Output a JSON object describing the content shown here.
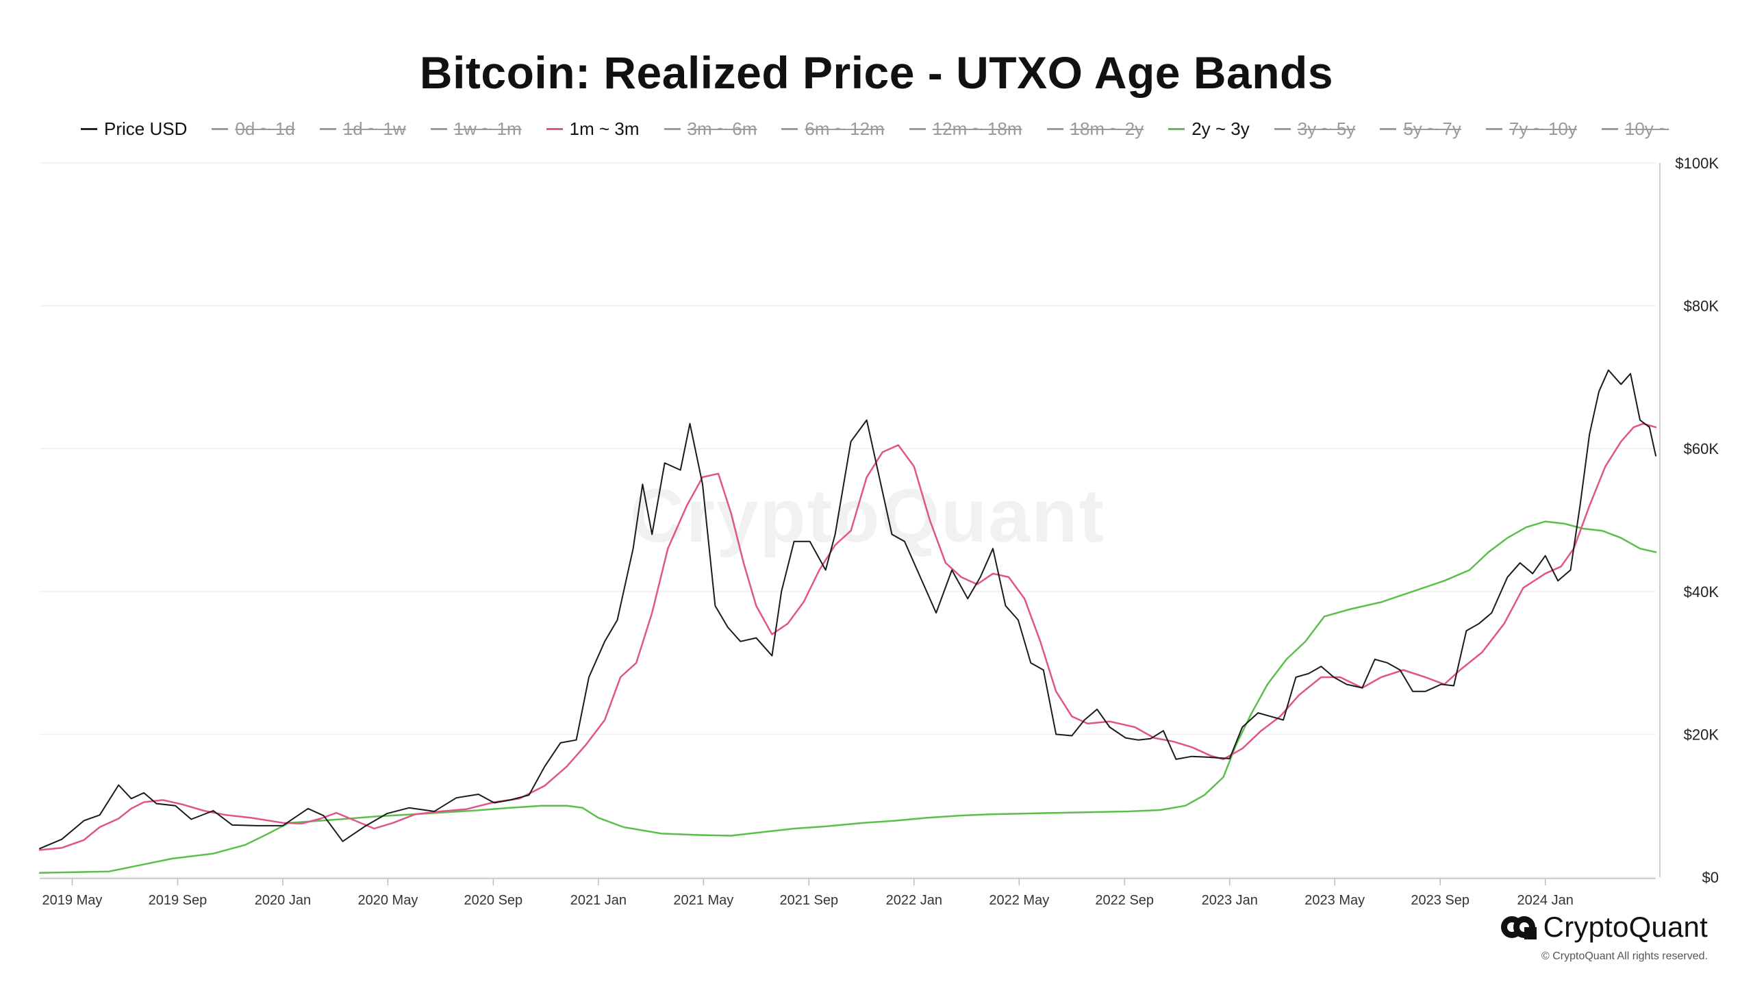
{
  "title": "Bitcoin: Realized Price - UTXO Age Bands",
  "legend": [
    {
      "label": "Price USD",
      "color": "#222222",
      "active": true
    },
    {
      "label": "0d ~ 1d",
      "color": "#999999",
      "active": false
    },
    {
      "label": "1d ~ 1w",
      "color": "#999999",
      "active": false
    },
    {
      "label": "1w ~ 1m",
      "color": "#999999",
      "active": false
    },
    {
      "label": "1m ~ 3m",
      "color": "#e0548a",
      "active": true
    },
    {
      "label": "3m ~ 6m",
      "color": "#999999",
      "active": false
    },
    {
      "label": "6m ~ 12m",
      "color": "#999999",
      "active": false
    },
    {
      "label": "12m ~ 18m",
      "color": "#999999",
      "active": false
    },
    {
      "label": "18m ~ 2y",
      "color": "#999999",
      "active": false
    },
    {
      "label": "2y ~ 3y",
      "color": "#5cbf4c",
      "active": true
    },
    {
      "label": "3y ~ 5y",
      "color": "#999999",
      "active": false
    },
    {
      "label": "5y ~ 7y",
      "color": "#999999",
      "active": false
    },
    {
      "label": "7y ~ 10y",
      "color": "#999999",
      "active": false
    },
    {
      "label": "10y ~",
      "color": "#999999",
      "active": false
    }
  ],
  "watermark": "CryptoQuant",
  "brand": {
    "name": "CryptoQuant",
    "copyright": "© CryptoQuant All rights reserved."
  },
  "chart_data": {
    "type": "line",
    "y_ticks": [
      "$0",
      "$20K",
      "$40K",
      "$60K",
      "$80K",
      "$100K"
    ],
    "ylim": [
      0,
      100000
    ],
    "y_axis_side": "right",
    "x_ticks": [
      {
        "label": "2019 May",
        "t": 2019.333
      },
      {
        "label": "2019 Sep",
        "t": 2019.667
      },
      {
        "label": "2020 Jan",
        "t": 2020.0
      },
      {
        "label": "2020 May",
        "t": 2020.333
      },
      {
        "label": "2020 Sep",
        "t": 2020.667
      },
      {
        "label": "2021 Jan",
        "t": 2021.0
      },
      {
        "label": "2021 May",
        "t": 2021.333
      },
      {
        "label": "2021 Sep",
        "t": 2021.667
      },
      {
        "label": "2022 Jan",
        "t": 2022.0
      },
      {
        "label": "2022 May",
        "t": 2022.333
      },
      {
        "label": "2022 Sep",
        "t": 2022.667
      },
      {
        "label": "2023 Jan",
        "t": 2023.0
      },
      {
        "label": "2023 May",
        "t": 2023.333
      },
      {
        "label": "2023 Sep",
        "t": 2023.667
      },
      {
        "label": "2024 Jan",
        "t": 2024.0
      }
    ],
    "xlim": [
      2019.23,
      2024.35
    ],
    "grid": true,
    "series": [
      {
        "name": "Price USD",
        "color": "#1a1a1a",
        "width": 2,
        "points": [
          [
            2019.23,
            4000
          ],
          [
            2019.3,
            5300
          ],
          [
            2019.37,
            7900
          ],
          [
            2019.42,
            8700
          ],
          [
            2019.48,
            12900
          ],
          [
            2019.52,
            11000
          ],
          [
            2019.56,
            11800
          ],
          [
            2019.6,
            10300
          ],
          [
            2019.66,
            10000
          ],
          [
            2019.71,
            8100
          ],
          [
            2019.78,
            9300
          ],
          [
            2019.84,
            7300
          ],
          [
            2019.92,
            7200
          ],
          [
            2020.0,
            7200
          ],
          [
            2020.08,
            9600
          ],
          [
            2020.13,
            8600
          ],
          [
            2020.19,
            5000
          ],
          [
            2020.26,
            7100
          ],
          [
            2020.33,
            8900
          ],
          [
            2020.4,
            9700
          ],
          [
            2020.48,
            9200
          ],
          [
            2020.55,
            11100
          ],
          [
            2020.62,
            11600
          ],
          [
            2020.67,
            10400
          ],
          [
            2020.72,
            10800
          ],
          [
            2020.78,
            11500
          ],
          [
            2020.83,
            15500
          ],
          [
            2020.88,
            18800
          ],
          [
            2020.93,
            19200
          ],
          [
            2020.97,
            28000
          ],
          [
            2021.02,
            33000
          ],
          [
            2021.06,
            36000
          ],
          [
            2021.11,
            46000
          ],
          [
            2021.14,
            55000
          ],
          [
            2021.17,
            48000
          ],
          [
            2021.21,
            58000
          ],
          [
            2021.26,
            57000
          ],
          [
            2021.29,
            63500
          ],
          [
            2021.33,
            55000
          ],
          [
            2021.37,
            38000
          ],
          [
            2021.41,
            35000
          ],
          [
            2021.45,
            33000
          ],
          [
            2021.5,
            33500
          ],
          [
            2021.55,
            31000
          ],
          [
            2021.58,
            40000
          ],
          [
            2021.62,
            47000
          ],
          [
            2021.67,
            47000
          ],
          [
            2021.72,
            43000
          ],
          [
            2021.75,
            48000
          ],
          [
            2021.8,
            61000
          ],
          [
            2021.85,
            64000
          ],
          [
            2021.88,
            58000
          ],
          [
            2021.93,
            48000
          ],
          [
            2021.97,
            47000
          ],
          [
            2022.02,
            42000
          ],
          [
            2022.07,
            37000
          ],
          [
            2022.12,
            43000
          ],
          [
            2022.17,
            39000
          ],
          [
            2022.21,
            42000
          ],
          [
            2022.25,
            46000
          ],
          [
            2022.29,
            38000
          ],
          [
            2022.33,
            36000
          ],
          [
            2022.37,
            30000
          ],
          [
            2022.41,
            29000
          ],
          [
            2022.45,
            20000
          ],
          [
            2022.5,
            19800
          ],
          [
            2022.54,
            22000
          ],
          [
            2022.58,
            23500
          ],
          [
            2022.62,
            21000
          ],
          [
            2022.67,
            19500
          ],
          [
            2022.71,
            19200
          ],
          [
            2022.75,
            19400
          ],
          [
            2022.79,
            20500
          ],
          [
            2022.83,
            16500
          ],
          [
            2022.88,
            16900
          ],
          [
            2022.93,
            16800
          ],
          [
            2023.0,
            16600
          ],
          [
            2023.04,
            21000
          ],
          [
            2023.09,
            23000
          ],
          [
            2023.13,
            22500
          ],
          [
            2023.17,
            22000
          ],
          [
            2023.21,
            28000
          ],
          [
            2023.25,
            28500
          ],
          [
            2023.29,
            29500
          ],
          [
            2023.33,
            28000
          ],
          [
            2023.37,
            27000
          ],
          [
            2023.42,
            26500
          ],
          [
            2023.46,
            30500
          ],
          [
            2023.5,
            30000
          ],
          [
            2023.54,
            29000
          ],
          [
            2023.58,
            26000
          ],
          [
            2023.62,
            26000
          ],
          [
            2023.67,
            27000
          ],
          [
            2023.71,
            26800
          ],
          [
            2023.75,
            34500
          ],
          [
            2023.79,
            35500
          ],
          [
            2023.83,
            37000
          ],
          [
            2023.88,
            42000
          ],
          [
            2023.92,
            44000
          ],
          [
            2023.96,
            42500
          ],
          [
            2024.0,
            45000
          ],
          [
            2024.04,
            41500
          ],
          [
            2024.08,
            43000
          ],
          [
            2024.11,
            52000
          ],
          [
            2024.14,
            62000
          ],
          [
            2024.17,
            68000
          ],
          [
            2024.2,
            71000
          ],
          [
            2024.24,
            69000
          ],
          [
            2024.27,
            70500
          ],
          [
            2024.3,
            64000
          ],
          [
            2024.33,
            63000
          ],
          [
            2024.35,
            59000
          ]
        ]
      },
      {
        "name": "1m ~ 3m",
        "color": "#e0548a",
        "width": 2.5,
        "points": [
          [
            2019.23,
            3800
          ],
          [
            2019.3,
            4100
          ],
          [
            2019.37,
            5200
          ],
          [
            2019.42,
            7000
          ],
          [
            2019.48,
            8200
          ],
          [
            2019.52,
            9600
          ],
          [
            2019.56,
            10500
          ],
          [
            2019.62,
            10800
          ],
          [
            2019.68,
            10200
          ],
          [
            2019.75,
            9300
          ],
          [
            2019.82,
            8700
          ],
          [
            2019.9,
            8300
          ],
          [
            2020.0,
            7600
          ],
          [
            2020.06,
            7500
          ],
          [
            2020.12,
            8200
          ],
          [
            2020.17,
            9000
          ],
          [
            2020.23,
            7900
          ],
          [
            2020.29,
            6800
          ],
          [
            2020.35,
            7600
          ],
          [
            2020.42,
            8800
          ],
          [
            2020.5,
            9200
          ],
          [
            2020.58,
            9500
          ],
          [
            2020.67,
            10500
          ],
          [
            2020.75,
            11000
          ],
          [
            2020.83,
            12800
          ],
          [
            2020.9,
            15500
          ],
          [
            2020.96,
            18500
          ],
          [
            2021.02,
            22000
          ],
          [
            2021.07,
            28000
          ],
          [
            2021.12,
            30000
          ],
          [
            2021.17,
            37000
          ],
          [
            2021.22,
            46000
          ],
          [
            2021.28,
            52000
          ],
          [
            2021.33,
            56000
          ],
          [
            2021.38,
            56500
          ],
          [
            2021.42,
            51000
          ],
          [
            2021.46,
            44000
          ],
          [
            2021.5,
            38000
          ],
          [
            2021.55,
            34000
          ],
          [
            2021.6,
            35500
          ],
          [
            2021.65,
            38500
          ],
          [
            2021.7,
            43000
          ],
          [
            2021.75,
            46500
          ],
          [
            2021.8,
            48500
          ],
          [
            2021.85,
            56000
          ],
          [
            2021.9,
            59500
          ],
          [
            2021.95,
            60500
          ],
          [
            2022.0,
            57500
          ],
          [
            2022.05,
            50000
          ],
          [
            2022.1,
            44000
          ],
          [
            2022.15,
            42000
          ],
          [
            2022.2,
            41000
          ],
          [
            2022.25,
            42500
          ],
          [
            2022.3,
            42000
          ],
          [
            2022.35,
            39000
          ],
          [
            2022.4,
            33000
          ],
          [
            2022.45,
            26000
          ],
          [
            2022.5,
            22500
          ],
          [
            2022.55,
            21500
          ],
          [
            2022.62,
            21800
          ],
          [
            2022.7,
            21000
          ],
          [
            2022.76,
            19500
          ],
          [
            2022.82,
            19000
          ],
          [
            2022.88,
            18200
          ],
          [
            2022.94,
            17000
          ],
          [
            2022.98,
            16500
          ],
          [
            2023.04,
            18000
          ],
          [
            2023.1,
            20500
          ],
          [
            2023.16,
            22500
          ],
          [
            2023.22,
            25500
          ],
          [
            2023.29,
            28000
          ],
          [
            2023.35,
            28000
          ],
          [
            2023.42,
            26500
          ],
          [
            2023.48,
            28000
          ],
          [
            2023.55,
            29000
          ],
          [
            2023.62,
            28000
          ],
          [
            2023.68,
            27000
          ],
          [
            2023.73,
            29000
          ],
          [
            2023.8,
            31500
          ],
          [
            2023.87,
            35500
          ],
          [
            2023.93,
            40500
          ],
          [
            2024.0,
            42500
          ],
          [
            2024.05,
            43500
          ],
          [
            2024.09,
            46000
          ],
          [
            2024.14,
            52000
          ],
          [
            2024.19,
            57500
          ],
          [
            2024.24,
            61000
          ],
          [
            2024.28,
            63000
          ],
          [
            2024.31,
            63500
          ],
          [
            2024.35,
            63000
          ]
        ]
      },
      {
        "name": "2y ~ 3y",
        "color": "#5cbf4c",
        "width": 2.5,
        "points": [
          [
            2019.23,
            600
          ],
          [
            2019.45,
            800
          ],
          [
            2019.55,
            1700
          ],
          [
            2019.65,
            2600
          ],
          [
            2019.78,
            3300
          ],
          [
            2019.88,
            4500
          ],
          [
            2019.95,
            6000
          ],
          [
            2020.02,
            7600
          ],
          [
            2020.15,
            8000
          ],
          [
            2020.3,
            8500
          ],
          [
            2020.45,
            8900
          ],
          [
            2020.6,
            9300
          ],
          [
            2020.72,
            9700
          ],
          [
            2020.82,
            10000
          ],
          [
            2020.9,
            10000
          ],
          [
            2020.95,
            9700
          ],
          [
            2021.0,
            8300
          ],
          [
            2021.08,
            7000
          ],
          [
            2021.2,
            6100
          ],
          [
            2021.32,
            5900
          ],
          [
            2021.42,
            5800
          ],
          [
            2021.52,
            6300
          ],
          [
            2021.62,
            6800
          ],
          [
            2021.72,
            7100
          ],
          [
            2021.84,
            7600
          ],
          [
            2021.94,
            7900
          ],
          [
            2022.04,
            8300
          ],
          [
            2022.14,
            8600
          ],
          [
            2022.24,
            8800
          ],
          [
            2022.34,
            8900
          ],
          [
            2022.46,
            9000
          ],
          [
            2022.56,
            9100
          ],
          [
            2022.68,
            9200
          ],
          [
            2022.78,
            9400
          ],
          [
            2022.86,
            10000
          ],
          [
            2022.92,
            11500
          ],
          [
            2022.98,
            14000
          ],
          [
            2023.02,
            18500
          ],
          [
            2023.07,
            23000
          ],
          [
            2023.12,
            27000
          ],
          [
            2023.18,
            30500
          ],
          [
            2023.24,
            33000
          ],
          [
            2023.3,
            36500
          ],
          [
            2023.38,
            37500
          ],
          [
            2023.48,
            38500
          ],
          [
            2023.58,
            40000
          ],
          [
            2023.68,
            41500
          ],
          [
            2023.76,
            43000
          ],
          [
            2023.82,
            45500
          ],
          [
            2023.88,
            47500
          ],
          [
            2023.94,
            49000
          ],
          [
            2024.0,
            49800
          ],
          [
            2024.06,
            49500
          ],
          [
            2024.12,
            48800
          ],
          [
            2024.18,
            48500
          ],
          [
            2024.24,
            47500
          ],
          [
            2024.3,
            46000
          ],
          [
            2024.35,
            45500
          ]
        ]
      }
    ]
  }
}
